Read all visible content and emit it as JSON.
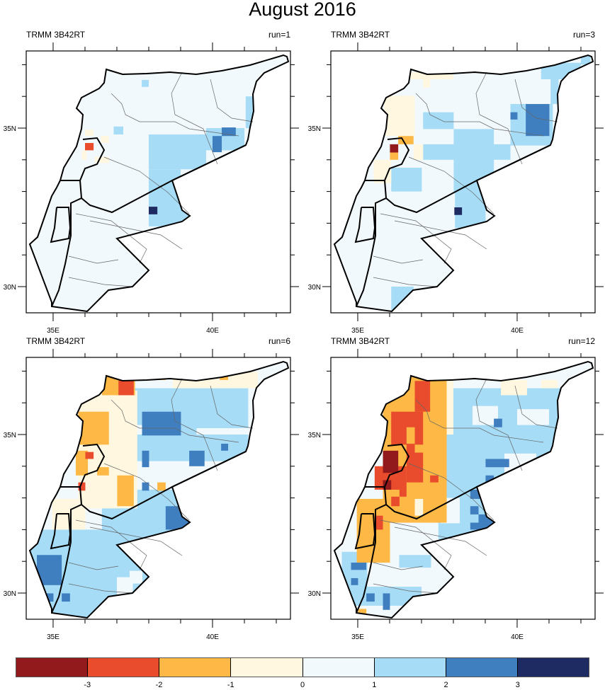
{
  "title": "August 2016",
  "axes": {
    "lon_labels": [
      {
        "value": 35,
        "label": "35E"
      },
      {
        "value": 40,
        "label": "40E"
      }
    ],
    "lat_labels": [
      {
        "value": 30,
        "label": "30N"
      },
      {
        "value": 35,
        "label": "35N"
      }
    ],
    "lon_minor": [
      35,
      36,
      37,
      38,
      39,
      40,
      41,
      42
    ],
    "lat_minor": [
      30,
      31,
      32,
      33,
      34,
      35,
      36,
      37
    ]
  },
  "colorbar": {
    "colors": [
      "#921a1d",
      "#e84c2c",
      "#fdb845",
      "#fff7e0",
      "#f2f9fd",
      "#a6dcf6",
      "#3f7fc0",
      "#1d2b62"
    ],
    "labels": [
      "-3",
      "-2",
      "-1",
      "0",
      "1",
      "2",
      "3"
    ]
  },
  "panels": [
    {
      "left_label": "TRMM 3B42RT",
      "right_label": "run=1",
      "background_class": 4,
      "cells": [
        [
          38.0,
          39.8,
          33.7,
          34.8,
          5
        ],
        [
          38.0,
          39.0,
          31.9,
          33.7,
          5
        ],
        [
          39.0,
          39.6,
          32.0,
          33.0,
          5
        ],
        [
          39.8,
          41.0,
          34.3,
          35.0,
          5
        ],
        [
          41.04,
          41.27,
          35.0,
          36.0,
          5
        ],
        [
          37.78,
          38.0,
          36.3,
          36.52,
          5
        ],
        [
          36.9,
          37.2,
          34.8,
          35.05,
          5
        ],
        [
          36.6,
          36.9,
          29.3,
          29.7,
          5
        ],
        [
          36.35,
          36.6,
          29.3,
          29.5,
          5
        ],
        [
          40.29,
          40.73,
          34.75,
          35.02,
          6
        ],
        [
          40.0,
          40.29,
          34.24,
          34.75,
          6
        ],
        [
          38.0,
          38.27,
          32.28,
          32.52,
          7
        ],
        [
          36.0,
          36.27,
          34.75,
          34.95,
          3
        ],
        [
          36.5,
          36.75,
          34.53,
          34.75,
          3
        ],
        [
          36.3,
          36.75,
          33.9,
          34.1,
          3
        ],
        [
          35.9,
          36.05,
          34.0,
          34.3,
          3
        ],
        [
          36.3,
          36.55,
          36.95,
          37.2,
          3
        ],
        [
          36.0,
          36.27,
          34.3,
          34.53,
          1
        ]
      ]
    },
    {
      "left_label": "TRMM 3B42RT",
      "right_label": "run=3",
      "background_class": 4,
      "cells": [
        [
          37.05,
          39.79,
          34.0,
          34.49,
          5
        ],
        [
          38.01,
          39.27,
          32.97,
          34.97,
          5
        ],
        [
          38.05,
          39.01,
          31.85,
          32.97,
          5
        ],
        [
          39.79,
          41.12,
          34.45,
          35.76,
          5
        ],
        [
          40.75,
          42.0,
          36.54,
          37.06,
          5
        ],
        [
          41.05,
          41.3,
          35.76,
          36.54,
          5
        ],
        [
          37.05,
          38.01,
          34.97,
          35.5,
          5
        ],
        [
          36.05,
          37.01,
          33.0,
          33.75,
          5
        ],
        [
          36.05,
          36.75,
          29.25,
          30.0,
          5
        ],
        [
          42.0,
          42.3,
          37.0,
          37.28,
          5
        ],
        [
          40.27,
          41.01,
          34.75,
          35.76,
          6
        ],
        [
          39.79,
          40.01,
          35.27,
          35.5,
          6
        ],
        [
          38.03,
          38.27,
          32.26,
          32.5,
          7
        ],
        [
          35.83,
          36.79,
          34.75,
          36.02,
          3
        ],
        [
          37.05,
          37.27,
          36.28,
          36.76,
          3
        ],
        [
          36.6,
          38.0,
          36.54,
          36.76,
          3
        ],
        [
          36.75,
          37.05,
          34.0,
          34.49,
          3
        ],
        [
          35.5,
          36.05,
          33.26,
          34.0,
          3
        ],
        [
          36.27,
          36.75,
          34.49,
          34.75,
          2
        ],
        [
          36.01,
          36.27,
          34.0,
          34.23,
          2
        ],
        [
          36.01,
          36.27,
          34.23,
          34.49,
          0
        ]
      ]
    },
    {
      "left_label": "TRMM 3B42RT",
      "right_label": "run=6",
      "background_class": 4,
      "cells": [
        [
          37.27,
          41.12,
          34.16,
          36.46,
          5
        ],
        [
          36.53,
          39.27,
          31.7,
          33.26,
          5
        ],
        [
          34.23,
          38.01,
          29.25,
          32.0,
          5
        ],
        [
          39.5,
          41.2,
          35.0,
          35.2,
          4
        ],
        [
          38.3,
          38.8,
          33.6,
          34.0,
          4
        ],
        [
          37.3,
          37.8,
          35.0,
          35.3,
          4
        ],
        [
          37.0,
          37.5,
          29.9,
          30.5,
          4
        ],
        [
          37.4,
          37.8,
          30.3,
          30.7,
          4
        ],
        [
          35.79,
          37.64,
          32.67,
          36.39,
          3
        ],
        [
          38.75,
          41.42,
          36.46,
          36.98,
          3
        ],
        [
          34.97,
          36.01,
          32.0,
          32.97,
          3
        ],
        [
          37.79,
          39.01,
          34.97,
          35.72,
          6
        ],
        [
          37.79,
          38.01,
          33.97,
          34.49,
          6
        ],
        [
          39.27,
          39.75,
          34.0,
          34.49,
          6
        ],
        [
          40.27,
          40.49,
          34.49,
          34.71,
          6
        ],
        [
          38.53,
          39.27,
          32.0,
          32.74,
          6
        ],
        [
          34.49,
          35.27,
          30.25,
          31.2,
          6
        ],
        [
          35.27,
          35.53,
          29.73,
          29.99,
          6
        ],
        [
          34.79,
          35.01,
          29.73,
          29.99,
          6
        ],
        [
          37.79,
          38.01,
          33.23,
          33.49,
          6
        ],
        [
          36.53,
          37.57,
          36.24,
          36.98,
          2
        ],
        [
          35.79,
          36.75,
          34.68,
          35.72,
          2
        ],
        [
          35.71,
          36.09,
          33.71,
          34.49,
          2
        ],
        [
          36.38,
          36.75,
          33.71,
          33.97,
          2
        ],
        [
          37.01,
          37.53,
          32.74,
          33.71,
          2
        ],
        [
          38.27,
          38.53,
          33.23,
          33.49,
          2
        ],
        [
          38.01,
          38.53,
          36.72,
          36.98,
          2
        ],
        [
          40.23,
          40.49,
          36.72,
          36.98,
          2
        ],
        [
          37.05,
          37.53,
          36.24,
          36.72,
          1
        ],
        [
          36.01,
          36.27,
          34.23,
          34.45,
          1
        ],
        [
          35.79,
          36.01,
          33.23,
          33.49,
          1
        ]
      ]
    },
    {
      "left_label": "TRMM 3B42RT",
      "right_label": "run=12",
      "background_class": 4,
      "cells": [
        [
          37.53,
          41.49,
          31.7,
          36.46,
          5
        ],
        [
          34.5,
          35.3,
          29.6,
          31.3,
          5
        ],
        [
          35.3,
          37.0,
          29.6,
          30.2,
          5
        ],
        [
          36.3,
          37.3,
          30.8,
          31.2,
          5
        ],
        [
          38.6,
          39.4,
          35.3,
          35.9,
          4
        ],
        [
          37.6,
          38.2,
          32.2,
          33.0,
          4
        ],
        [
          39.6,
          40.6,
          33.8,
          34.4,
          4
        ],
        [
          40.0,
          41.0,
          35.3,
          35.8,
          4
        ],
        [
          37.53,
          38.0,
          35.0,
          36.7,
          3
        ],
        [
          39.49,
          40.31,
          36.24,
          36.72,
          3
        ],
        [
          40.75,
          41.27,
          36.46,
          36.72,
          3
        ],
        [
          39.27,
          39.53,
          35.23,
          35.5,
          6
        ],
        [
          39.01,
          39.75,
          33.97,
          34.23,
          6
        ],
        [
          39.01,
          39.27,
          33.49,
          33.71,
          6
        ],
        [
          38.53,
          39.01,
          32.97,
          33.26,
          6
        ],
        [
          38.53,
          38.79,
          32.48,
          32.74,
          6
        ],
        [
          38.79,
          39.27,
          32.22,
          32.48,
          6
        ],
        [
          38.53,
          39.27,
          32.0,
          32.22,
          6
        ],
        [
          34.79,
          35.27,
          30.73,
          30.96,
          6
        ],
        [
          34.79,
          35.01,
          30.25,
          30.47,
          6
        ],
        [
          35.27,
          35.53,
          29.73,
          29.99,
          6
        ],
        [
          35.79,
          36.01,
          29.47,
          29.99,
          6
        ],
        [
          35.79,
          37.79,
          32.22,
          36.76,
          2
        ],
        [
          34.97,
          36.01,
          30.96,
          32.97,
          2
        ],
        [
          36.53,
          37.05,
          36.46,
          36.98,
          2
        ],
        [
          35.53,
          36.01,
          30.96,
          32.0,
          2
        ],
        [
          35.01,
          35.27,
          30.96,
          31.25,
          2
        ],
        [
          35.01,
          35.27,
          29.25,
          29.5,
          2
        ],
        [
          36.79,
          37.27,
          35.72,
          36.69,
          1
        ],
        [
          36.05,
          37.05,
          34.68,
          35.72,
          1
        ],
        [
          36.53,
          37.05,
          33.49,
          34.68,
          1
        ],
        [
          35.53,
          36.53,
          33.26,
          34.0,
          1
        ],
        [
          36.05,
          36.31,
          32.74,
          33.04,
          1
        ],
        [
          36.31,
          36.53,
          33.04,
          33.26,
          1
        ],
        [
          35.53,
          35.79,
          32.0,
          32.44,
          1
        ],
        [
          37.27,
          37.53,
          33.49,
          33.71,
          1
        ],
        [
          36.53,
          36.79,
          34.71,
          35.23,
          2
        ],
        [
          36.79,
          37.27,
          34.43,
          34.68,
          2
        ],
        [
          36.79,
          37.05,
          32.44,
          32.97,
          3
        ],
        [
          35.79,
          36.27,
          33.79,
          34.49,
          0
        ],
        [
          35.79,
          36.05,
          33.26,
          33.56,
          0
        ]
      ]
    }
  ]
}
